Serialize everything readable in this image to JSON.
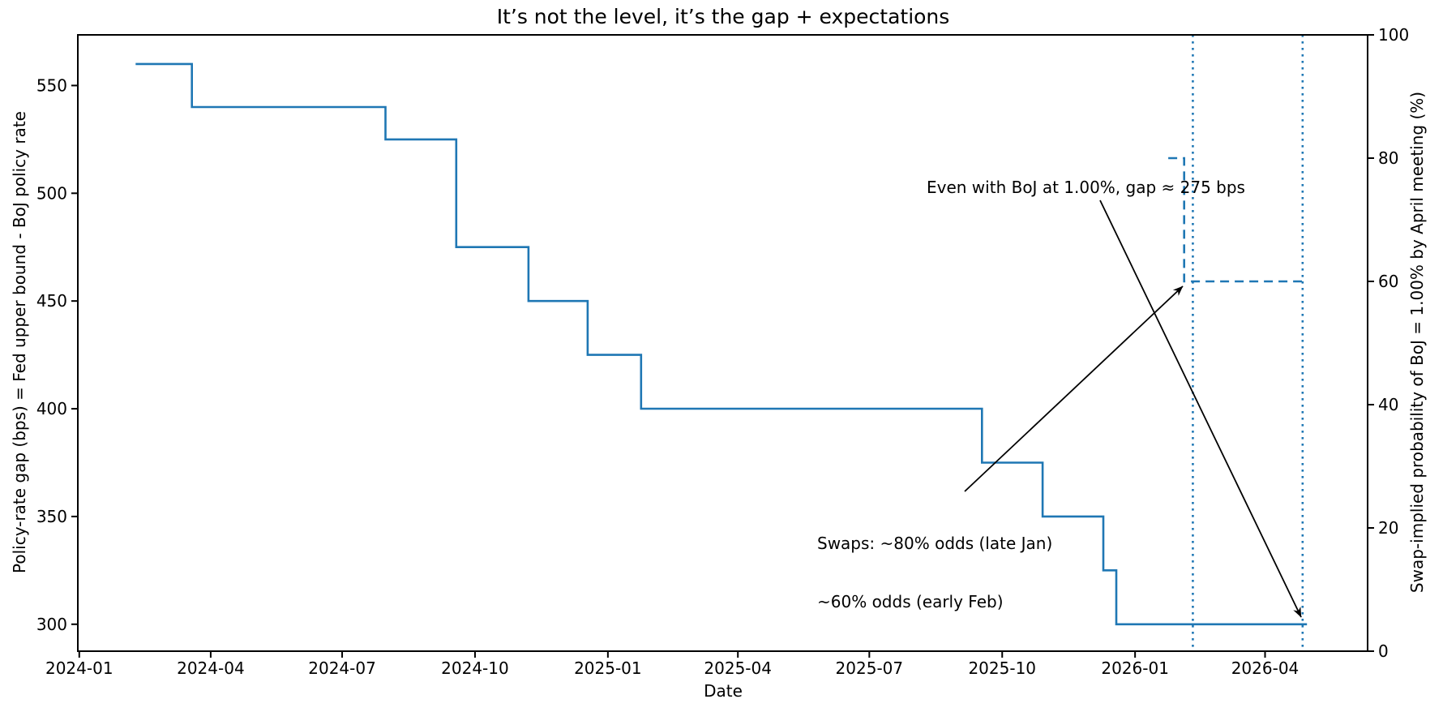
{
  "colors": {
    "accent_blue": "#1f77b4",
    "axis_black": "#000000",
    "background": "#ffffff"
  },
  "chart_data": {
    "type": "line",
    "title": "It’s not the level, it’s the gap + expectations",
    "xlabel": "Date",
    "ylabel_left": "Policy-rate gap (bps) = Fed upper bound - BoJ policy rate",
    "ylabel_right": "Swap-implied probability of BoJ = 1.00% by April meeting (%)",
    "grid": false,
    "legend": "none",
    "x_axis": {
      "lim": [
        "2023-12-31",
        "2026-06-11"
      ],
      "ticks": [
        {
          "date": "2024-01-01",
          "label": "2024-01"
        },
        {
          "date": "2024-04-01",
          "label": "2024-04"
        },
        {
          "date": "2024-07-01",
          "label": "2024-07"
        },
        {
          "date": "2024-10-01",
          "label": "2024-10"
        },
        {
          "date": "2025-01-01",
          "label": "2025-01"
        },
        {
          "date": "2025-04-01",
          "label": "2025-04"
        },
        {
          "date": "2025-07-01",
          "label": "2025-07"
        },
        {
          "date": "2025-10-01",
          "label": "2025-10"
        },
        {
          "date": "2026-01-01",
          "label": "2026-01"
        },
        {
          "date": "2026-04-01",
          "label": "2026-04"
        }
      ]
    },
    "y_axis_left": {
      "lim": [
        287.5,
        573.5
      ],
      "ticks": [
        300,
        350,
        400,
        450,
        500,
        550
      ]
    },
    "y_axis_right": {
      "lim": [
        0,
        100
      ],
      "ticks": [
        0,
        20,
        40,
        60,
        80,
        100
      ]
    },
    "series": [
      {
        "name": "policy-rate-gap-bps",
        "axis": "left",
        "style": "solid",
        "color": "#1f77b4",
        "step": "post",
        "points": [
          [
            "2024-02-09",
            560
          ],
          [
            "2024-03-19",
            540
          ],
          [
            "2024-07-31",
            525
          ],
          [
            "2024-09-18",
            475
          ],
          [
            "2024-11-07",
            450
          ],
          [
            "2024-12-18",
            425
          ],
          [
            "2025-01-24",
            400
          ],
          [
            "2025-09-17",
            375
          ],
          [
            "2025-10-29",
            350
          ],
          [
            "2025-12-10",
            325
          ],
          [
            "2025-12-19",
            300
          ],
          [
            "2026-04-30",
            300
          ]
        ]
      },
      {
        "name": "swap-implied-probability-pct",
        "axis": "right",
        "style": "dashed",
        "color": "#1f77b4",
        "step": "post",
        "points": [
          [
            "2026-01-24",
            80
          ],
          [
            "2026-02-04",
            60
          ],
          [
            "2026-04-30",
            60
          ]
        ]
      }
    ],
    "vlines": [
      {
        "date": "2026-02-10",
        "style": "dotted",
        "color": "#1f77b4"
      },
      {
        "date": "2026-04-27",
        "style": "dotted",
        "color": "#1f77b4"
      }
    ],
    "annotations": [
      {
        "text": "Even with BoJ at 1.00%, gap ≈ 275 bps",
        "arrow": {
          "from": [
            1357,
            247
          ],
          "to": [
            1605,
            761
          ]
        }
      },
      {
        "lines": [
          "Swaps: ~80% odds (late Jan)",
          "~60% odds (early Feb)"
        ],
        "arrow": {
          "from": [
            1190,
            606
          ],
          "to": [
            1459,
            353
          ]
        }
      }
    ]
  }
}
